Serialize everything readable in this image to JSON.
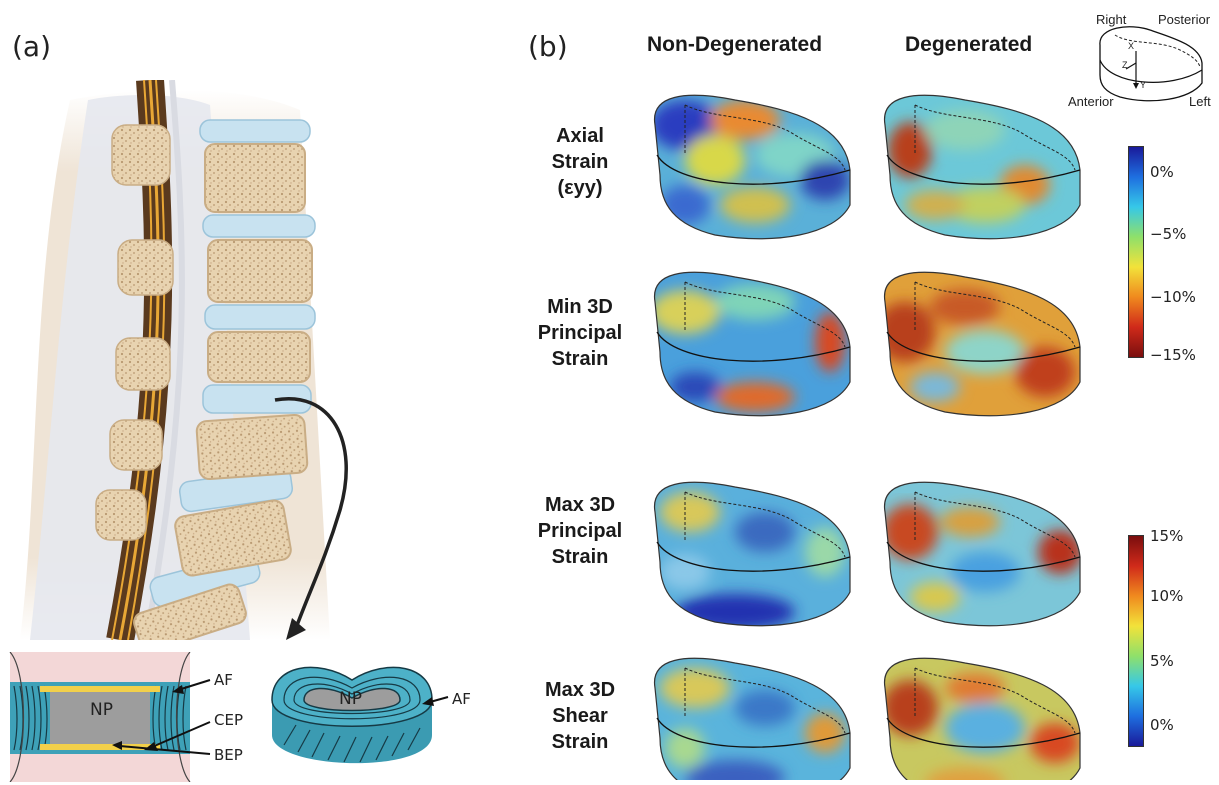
{
  "panel_a": {
    "label": "(a)",
    "section_labels": {
      "np": "NP",
      "af": "AF",
      "cep": "CEP",
      "bep": "BEP"
    },
    "disc_labels": {
      "np": "NP",
      "af": "AF"
    }
  },
  "panel_b": {
    "label": "(b)",
    "columns": [
      "Non-Degenerated",
      "Degenerated"
    ],
    "rows": [
      {
        "lines": [
          "Axial",
          "Strain",
          "(εyy)"
        ]
      },
      {
        "lines": [
          "Min 3D",
          "Principal",
          "Strain"
        ]
      },
      {
        "lines": [
          "Max 3D",
          "Principal",
          "Strain"
        ]
      },
      {
        "lines": [
          "Max 3D",
          "Shear",
          "Strain"
        ]
      }
    ],
    "orientation": {
      "right": "Right",
      "posterior": "Posterior",
      "anterior": "Anterior",
      "left": "Left",
      "x": "X",
      "y": "Y",
      "z": "Z"
    },
    "colorbar_top": {
      "ticks": [
        "0%",
        "−5%",
        "−10%",
        "−15%"
      ],
      "colors": [
        "#1a1a9a",
        "#1e6fe0",
        "#36c8e8",
        "#8fe06a",
        "#f2e23a",
        "#f08a1e",
        "#d02a1a",
        "#7a0e0e"
      ]
    },
    "colorbar_bottom": {
      "ticks": [
        "15%",
        "10%",
        "5%",
        "0%"
      ],
      "colors": [
        "#7a0e0e",
        "#d02a1a",
        "#f08a1e",
        "#f2e23a",
        "#8fe06a",
        "#36c8e8",
        "#1e6fe0",
        "#1a1a9a"
      ]
    }
  }
}
